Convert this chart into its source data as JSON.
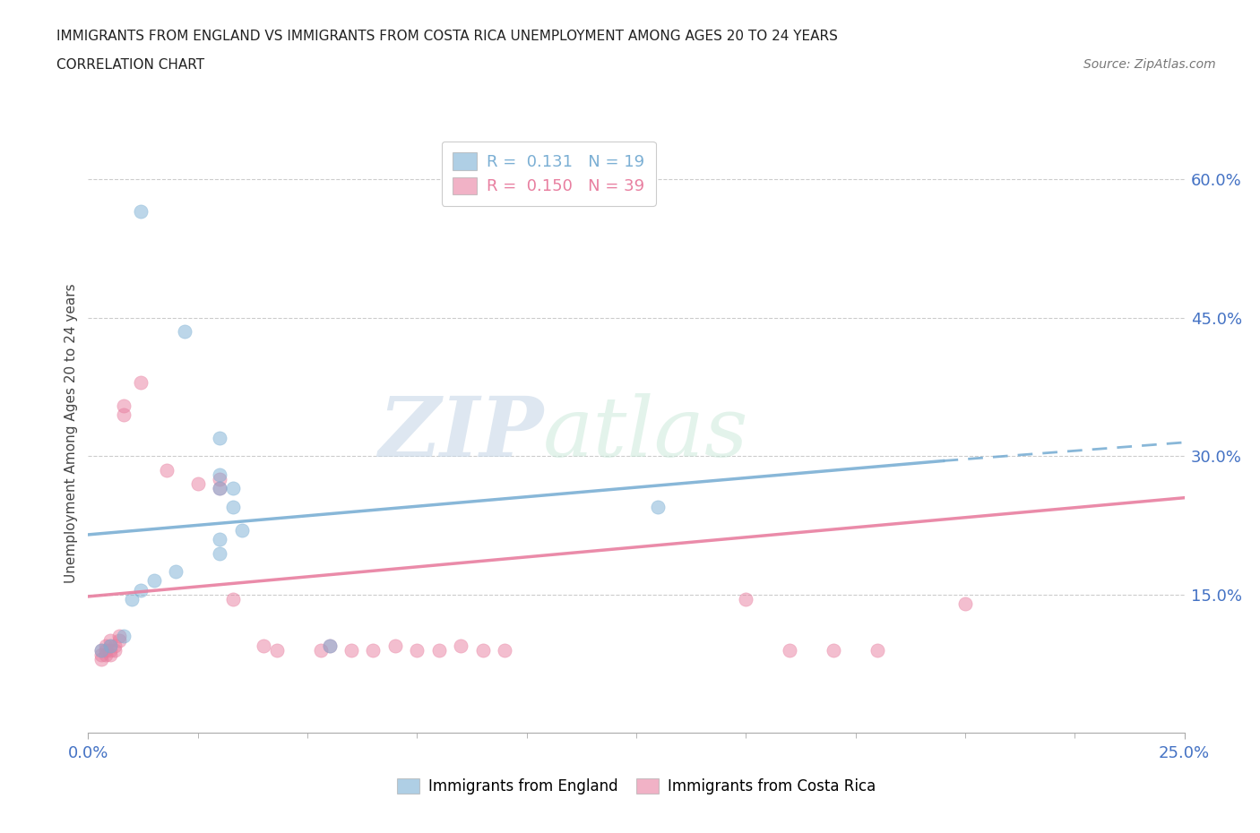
{
  "title_line1": "IMMIGRANTS FROM ENGLAND VS IMMIGRANTS FROM COSTA RICA UNEMPLOYMENT AMONG AGES 20 TO 24 YEARS",
  "title_line2": "CORRELATION CHART",
  "source": "Source: ZipAtlas.com",
  "ylabel": "Unemployment Among Ages 20 to 24 years",
  "x_min": 0.0,
  "x_max": 0.25,
  "y_min": 0.0,
  "y_max": 0.65,
  "x_ticks": [
    0.0,
    0.25
  ],
  "x_tick_labels": [
    "0.0%",
    "25.0%"
  ],
  "y_ticks": [
    0.15,
    0.3,
    0.45,
    0.6
  ],
  "y_tick_labels": [
    "15.0%",
    "30.0%",
    "45.0%",
    "60.0%"
  ],
  "england_color": "#7bafd4",
  "costa_rica_color": "#e87fa0",
  "england_scatter": [
    [
      0.012,
      0.565
    ],
    [
      0.022,
      0.435
    ],
    [
      0.03,
      0.32
    ],
    [
      0.03,
      0.28
    ],
    [
      0.03,
      0.265
    ],
    [
      0.033,
      0.265
    ],
    [
      0.033,
      0.245
    ],
    [
      0.035,
      0.22
    ],
    [
      0.03,
      0.21
    ],
    [
      0.03,
      0.195
    ],
    [
      0.02,
      0.175
    ],
    [
      0.015,
      0.165
    ],
    [
      0.012,
      0.155
    ],
    [
      0.01,
      0.145
    ],
    [
      0.008,
      0.105
    ],
    [
      0.005,
      0.095
    ],
    [
      0.003,
      0.09
    ],
    [
      0.055,
      0.095
    ],
    [
      0.13,
      0.245
    ]
  ],
  "costa_rica_scatter": [
    [
      0.003,
      0.09
    ],
    [
      0.003,
      0.085
    ],
    [
      0.003,
      0.08
    ],
    [
      0.004,
      0.095
    ],
    [
      0.004,
      0.09
    ],
    [
      0.004,
      0.085
    ],
    [
      0.005,
      0.1
    ],
    [
      0.005,
      0.095
    ],
    [
      0.005,
      0.09
    ],
    [
      0.005,
      0.085
    ],
    [
      0.006,
      0.095
    ],
    [
      0.006,
      0.09
    ],
    [
      0.007,
      0.105
    ],
    [
      0.007,
      0.1
    ],
    [
      0.008,
      0.355
    ],
    [
      0.008,
      0.345
    ],
    [
      0.012,
      0.38
    ],
    [
      0.018,
      0.285
    ],
    [
      0.025,
      0.27
    ],
    [
      0.03,
      0.275
    ],
    [
      0.03,
      0.265
    ],
    [
      0.033,
      0.145
    ],
    [
      0.04,
      0.095
    ],
    [
      0.043,
      0.09
    ],
    [
      0.053,
      0.09
    ],
    [
      0.055,
      0.095
    ],
    [
      0.06,
      0.09
    ],
    [
      0.065,
      0.09
    ],
    [
      0.07,
      0.095
    ],
    [
      0.075,
      0.09
    ],
    [
      0.08,
      0.09
    ],
    [
      0.085,
      0.095
    ],
    [
      0.09,
      0.09
    ],
    [
      0.095,
      0.09
    ],
    [
      0.15,
      0.145
    ],
    [
      0.16,
      0.09
    ],
    [
      0.17,
      0.09
    ],
    [
      0.18,
      0.09
    ],
    [
      0.2,
      0.14
    ]
  ],
  "england_line_solid": {
    "x0": 0.0,
    "y0": 0.215,
    "x1": 0.195,
    "y1": 0.295
  },
  "england_line_dash": {
    "x0": 0.195,
    "y0": 0.295,
    "x1": 0.25,
    "y1": 0.315
  },
  "costa_rica_line": {
    "x0": 0.0,
    "y0": 0.148,
    "x1": 0.25,
    "y1": 0.255
  },
  "england_R": "0.131",
  "england_N": "19",
  "costa_rica_R": "0.150",
  "costa_rica_N": "39",
  "watermark_zip": "ZIP",
  "watermark_atlas": "atlas",
  "background_color": "#ffffff",
  "grid_color": "#cccccc",
  "tick_color": "#4472C4"
}
